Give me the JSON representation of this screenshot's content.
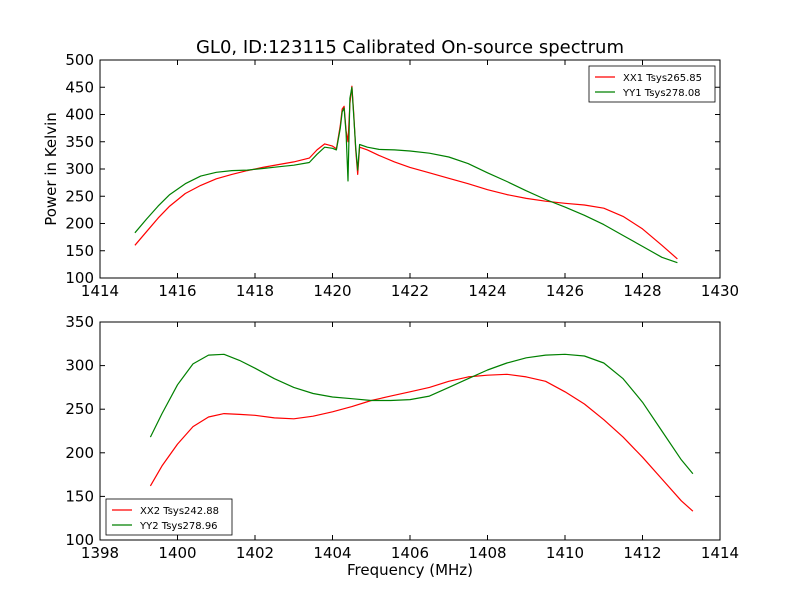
{
  "figure": {
    "title": "GL0, ID:123115 Calibrated On-source spectrum"
  },
  "colors": {
    "xx": "#ff0000",
    "yy": "#008000"
  },
  "chart_data": [
    {
      "type": "line",
      "title": "GL0, ID:123115 Calibrated On-source spectrum",
      "xlabel": "",
      "ylabel": "Power in Kelvin",
      "xlim": [
        1414,
        1430
      ],
      "ylim": [
        100,
        500
      ],
      "xticks": [
        1414,
        1416,
        1418,
        1420,
        1422,
        1424,
        1426,
        1428,
        1430
      ],
      "yticks": [
        100,
        150,
        200,
        250,
        300,
        350,
        400,
        450,
        500
      ],
      "legend": "top-right",
      "grid": false,
      "series": [
        {
          "name": "XX1 Tsys265.85",
          "color": "#ff0000",
          "x": [
            1414.9,
            1415.2,
            1415.5,
            1415.8,
            1416.2,
            1416.6,
            1417.0,
            1417.4,
            1417.8,
            1418.2,
            1418.6,
            1419.0,
            1419.4,
            1419.6,
            1419.8,
            1420.0,
            1420.1,
            1420.2,
            1420.25,
            1420.3,
            1420.35,
            1420.4,
            1420.45,
            1420.5,
            1420.55,
            1420.6,
            1420.65,
            1420.7,
            1420.9,
            1421.2,
            1421.6,
            1422.0,
            1422.5,
            1423.0,
            1423.5,
            1424.0,
            1424.5,
            1425.0,
            1425.5,
            1426.0,
            1426.5,
            1427.0,
            1427.5,
            1428.0,
            1428.5,
            1428.9
          ],
          "y": [
            160,
            185,
            210,
            232,
            255,
            270,
            282,
            290,
            297,
            303,
            308,
            313,
            320,
            335,
            346,
            342,
            337,
            380,
            410,
            415,
            370,
            350,
            420,
            452,
            400,
            335,
            290,
            340,
            335,
            325,
            313,
            303,
            293,
            283,
            273,
            262,
            253,
            246,
            241,
            237,
            234,
            228,
            213,
            190,
            160,
            135
          ]
        },
        {
          "name": "YY1 Tsys278.08",
          "color": "#008000",
          "x": [
            1414.9,
            1415.2,
            1415.5,
            1415.8,
            1416.2,
            1416.6,
            1417.0,
            1417.4,
            1417.8,
            1418.2,
            1418.6,
            1419.0,
            1419.4,
            1419.6,
            1419.8,
            1420.0,
            1420.1,
            1420.2,
            1420.25,
            1420.3,
            1420.35,
            1420.4,
            1420.45,
            1420.5,
            1420.55,
            1420.6,
            1420.65,
            1420.7,
            1420.9,
            1421.2,
            1421.6,
            1422.0,
            1422.5,
            1423.0,
            1423.5,
            1424.0,
            1424.5,
            1425.0,
            1425.5,
            1426.0,
            1426.5,
            1427.0,
            1427.5,
            1428.0,
            1428.5,
            1428.9
          ],
          "y": [
            183,
            208,
            232,
            253,
            273,
            287,
            294,
            297,
            298,
            301,
            304,
            307,
            312,
            327,
            340,
            338,
            335,
            375,
            405,
            412,
            365,
            278,
            430,
            450,
            395,
            340,
            298,
            345,
            340,
            336,
            335,
            333,
            329,
            322,
            310,
            293,
            277,
            260,
            244,
            230,
            215,
            198,
            178,
            158,
            138,
            128
          ]
        }
      ]
    },
    {
      "type": "line",
      "title": "",
      "xlabel": "Frequency (MHz)",
      "ylabel": "",
      "xlim": [
        1398,
        1414
      ],
      "ylim": [
        100,
        350
      ],
      "xticks": [
        1398,
        1400,
        1402,
        1404,
        1406,
        1408,
        1410,
        1412,
        1414
      ],
      "yticks": [
        100,
        150,
        200,
        250,
        300,
        350
      ],
      "legend": "bottom-left",
      "grid": false,
      "series": [
        {
          "name": "XX2 Tsys242.88",
          "color": "#ff0000",
          "x": [
            1399.3,
            1399.6,
            1400.0,
            1400.4,
            1400.8,
            1401.2,
            1401.6,
            1402.0,
            1402.5,
            1403.0,
            1403.5,
            1404.0,
            1404.5,
            1405.0,
            1405.5,
            1406.0,
            1406.5,
            1407.0,
            1407.5,
            1408.0,
            1408.5,
            1409.0,
            1409.5,
            1410.0,
            1410.5,
            1411.0,
            1411.5,
            1412.0,
            1412.5,
            1413.0,
            1413.3
          ],
          "y": [
            162,
            185,
            210,
            230,
            241,
            245,
            244,
            243,
            240,
            239,
            242,
            247,
            253,
            260,
            265,
            270,
            275,
            282,
            287,
            289,
            290,
            287,
            282,
            270,
            256,
            238,
            218,
            195,
            170,
            145,
            133
          ]
        },
        {
          "name": "YY2 Tsys278.96",
          "color": "#008000",
          "x": [
            1399.3,
            1399.6,
            1400.0,
            1400.4,
            1400.8,
            1401.2,
            1401.6,
            1402.0,
            1402.5,
            1403.0,
            1403.5,
            1404.0,
            1404.5,
            1405.0,
            1405.5,
            1406.0,
            1406.5,
            1407.0,
            1407.5,
            1408.0,
            1408.5,
            1409.0,
            1409.5,
            1410.0,
            1410.5,
            1411.0,
            1411.5,
            1412.0,
            1412.5,
            1413.0,
            1413.3
          ],
          "y": [
            218,
            245,
            278,
            302,
            312,
            313,
            306,
            297,
            285,
            275,
            268,
            264,
            262,
            260,
            260,
            261,
            265,
            275,
            285,
            295,
            303,
            309,
            312,
            313,
            311,
            303,
            285,
            258,
            225,
            192,
            176
          ]
        }
      ]
    }
  ]
}
